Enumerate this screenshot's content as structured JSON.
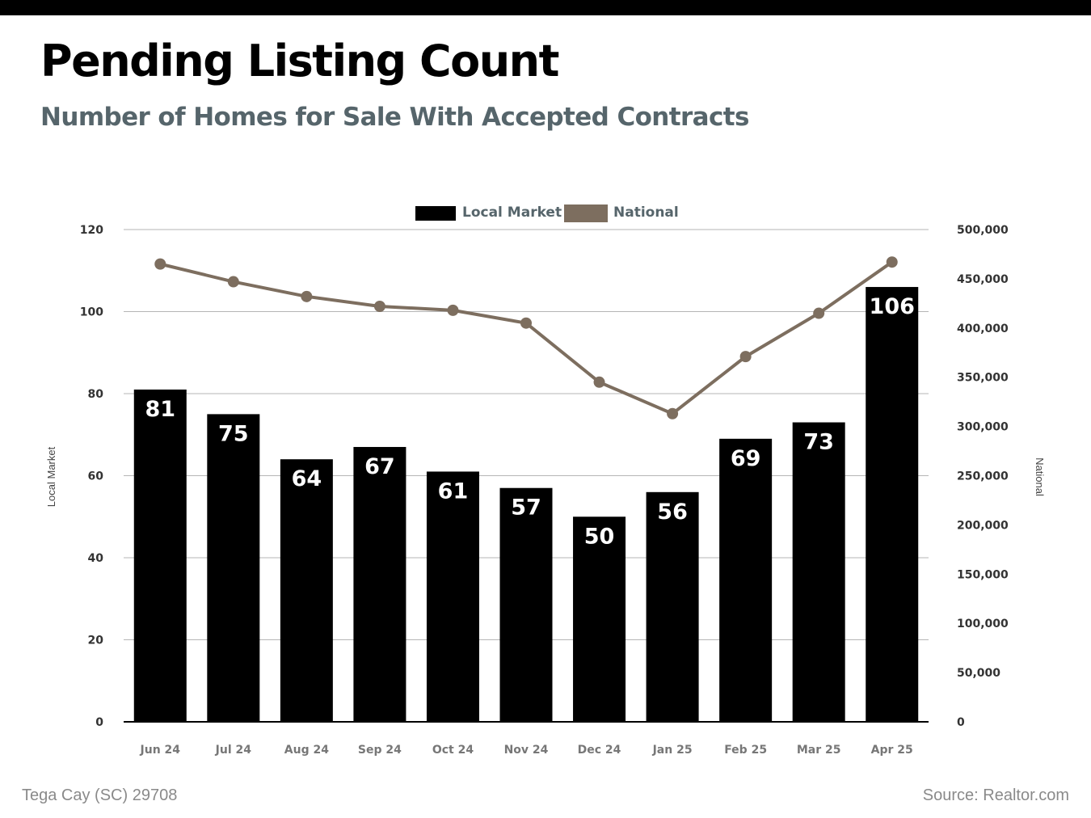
{
  "header": {
    "title": "Pending Listing Count",
    "subtitle": "Number of Homes for Sale With Accepted Contracts"
  },
  "footer": {
    "location": "Tega Cay (SC) 29708",
    "source": "Source: Realtor.com"
  },
  "colors": {
    "local_bar": "#000000",
    "national_line": "#7d6e5f",
    "gridline": "#b5b5b5",
    "subtitle": "#56656b"
  },
  "chart_data": {
    "type": "bar",
    "categories": [
      "Jun 24",
      "Jul 24",
      "Aug 24",
      "Sep 24",
      "Oct 24",
      "Nov 24",
      "Dec 24",
      "Jan 25",
      "Feb 25",
      "Mar 25",
      "Apr 25"
    ],
    "series": [
      {
        "name": "Local Market",
        "type": "bar",
        "axis": "left",
        "values": [
          81,
          75,
          64,
          67,
          61,
          57,
          50,
          56,
          69,
          73,
          106
        ]
      },
      {
        "name": "National",
        "type": "line",
        "axis": "right",
        "values": [
          465000,
          447000,
          432000,
          422000,
          418000,
          405000,
          345000,
          313000,
          371000,
          415000,
          467000
        ]
      }
    ],
    "ylabel": "Local Market",
    "ylabel_right": "National",
    "ylim": [
      0,
      120
    ],
    "ylim_right": [
      0,
      500000
    ],
    "yticks": [
      "0",
      "20",
      "40",
      "60",
      "80",
      "100",
      "120"
    ],
    "yticks_right": [
      "0",
      "50,000",
      "100,000",
      "150,000",
      "200,000",
      "250,000",
      "300,000",
      "350,000",
      "400,000",
      "450,000",
      "500,000"
    ],
    "data_labels": [
      "81",
      "75",
      "64",
      "67",
      "61",
      "57",
      "50",
      "56",
      "69",
      "73",
      "106"
    ],
    "legend": {
      "position": "top-center",
      "entries": [
        "Local Market",
        "National"
      ]
    },
    "grid": true
  }
}
